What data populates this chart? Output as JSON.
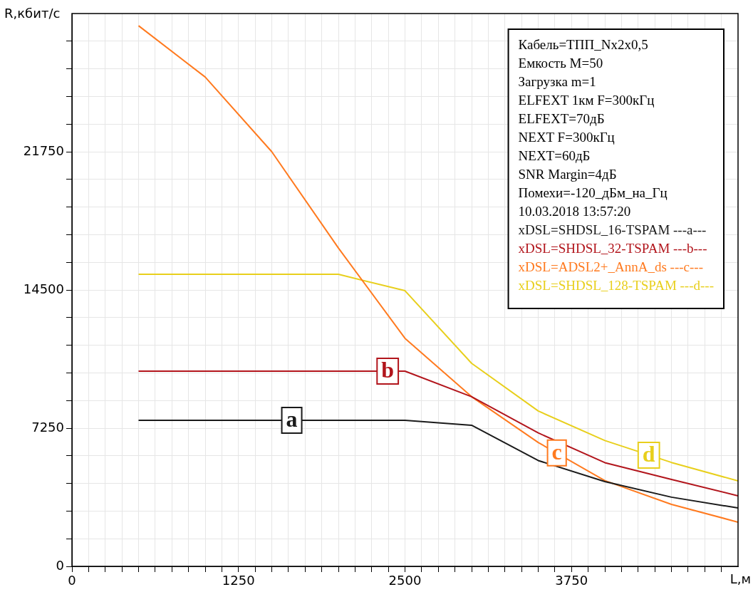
{
  "chart_data": {
    "type": "line",
    "xlabel": "L,м",
    "ylabel": "R,кбит/с",
    "x": [
      500,
      1000,
      1500,
      2000,
      2500,
      3000,
      3500,
      4000,
      4500,
      5000
    ],
    "series": [
      {
        "name": "xDSL=SHDSL_16-TSPAM ---a---",
        "color": "#1a1a1a",
        "values": [
          7660,
          7660,
          7660,
          7660,
          7660,
          7400,
          5550,
          4450,
          3630,
          3060
        ]
      },
      {
        "name": "xDSL=SHDSL_32-TSPAM ---b---",
        "color": "#b2151c",
        "values": [
          10240,
          10240,
          10240,
          10240,
          10240,
          8900,
          7000,
          5440,
          4560,
          3700
        ]
      },
      {
        "name": "xDSL=ADSL2+_AnnA_ds ---c---",
        "color": "#ff7a1f",
        "values": [
          28360,
          25670,
          21750,
          16700,
          11960,
          8900,
          6500,
          4500,
          3250,
          2320
        ]
      },
      {
        "name": "xDSL=SHDSL_128-TSPAM ---d---",
        "color": "#e8cf1c",
        "values": [
          15320,
          15320,
          15320,
          15320,
          14460,
          10650,
          8150,
          6600,
          5450,
          4480
        ]
      }
    ],
    "xlim": [
      0,
      5000
    ],
    "ylim": [
      0,
      29000
    ],
    "xticks": [
      0,
      {
        "value": 125,
        "label": null
      },
      {
        "value": 250,
        "label": null
      },
      {
        "value": 375,
        "label": null
      },
      {
        "value": 500,
        "label": null
      },
      {
        "value": 625,
        "label": null
      },
      {
        "value": 750,
        "label": null
      },
      {
        "value": 875,
        "label": null
      },
      {
        "value": 1000,
        "label": null
      },
      {
        "value": 1125,
        "label": null
      },
      1250,
      {
        "value": 1375,
        "label": null
      },
      {
        "value": 1500,
        "label": null
      },
      {
        "value": 1625,
        "label": null
      },
      {
        "value": 1750,
        "label": null
      },
      {
        "value": 1875,
        "label": null
      },
      {
        "value": 2000,
        "label": null
      },
      {
        "value": 2125,
        "label": null
      },
      {
        "value": 2250,
        "label": null
      },
      {
        "value": 2375,
        "label": null
      },
      2500,
      {
        "value": 2625,
        "label": null
      },
      {
        "value": 2750,
        "label": null
      },
      {
        "value": 2875,
        "label": null
      },
      {
        "value": 3000,
        "label": null
      },
      {
        "value": 3125,
        "label": null
      },
      {
        "value": 3250,
        "label": null
      },
      {
        "value": 3375,
        "label": null
      },
      {
        "value": 3500,
        "label": null
      },
      {
        "value": 3625,
        "label": null
      },
      3750,
      {
        "value": 3875,
        "label": null
      },
      {
        "value": 4000,
        "label": null
      },
      {
        "value": 4125,
        "label": null
      },
      {
        "value": 4250,
        "label": null
      },
      {
        "value": 4375,
        "label": null
      },
      {
        "value": 4500,
        "label": null
      },
      {
        "value": 4625,
        "label": null
      },
      {
        "value": 4750,
        "label": null
      },
      {
        "value": 4875,
        "label": null
      }
    ],
    "yticks": [
      0,
      {
        "value": 1450,
        "label": null
      },
      {
        "value": 2900,
        "label": null
      },
      {
        "value": 4350,
        "label": null
      },
      {
        "value": 5800,
        "label": null
      },
      7250,
      {
        "value": 8700,
        "label": null
      },
      {
        "value": 10150,
        "label": null
      },
      {
        "value": 11600,
        "label": null
      },
      {
        "value": 13050,
        "label": null
      },
      14500,
      {
        "value": 15950,
        "label": null
      },
      {
        "value": 17400,
        "label": null
      },
      {
        "value": 18850,
        "label": null
      },
      {
        "value": 20300,
        "label": null
      },
      21750,
      {
        "value": 23200,
        "label": null
      },
      {
        "value": 24650,
        "label": null
      },
      {
        "value": 26100,
        "label": null
      },
      {
        "value": 27550,
        "label": null
      }
    ],
    "grid": true,
    "legend": "top right",
    "marker": "none",
    "line_style": "solid",
    "annotations": [
      {
        "text": "a",
        "x": 1650,
        "y": 7660
      },
      {
        "text": "b",
        "x": 2370,
        "y": 10240
      },
      {
        "text": "c",
        "x": 3640,
        "y": 5950
      },
      {
        "text": "d",
        "x": 4330,
        "y": 5830
      },
      "Кабель=ТПП_Nx2x0,5",
      "Емкость M=50",
      "Загрузка m=1",
      "ELFEXT 1км F=300кГц",
      "ELFEXT=70дБ",
      "NEXT F=300кГц",
      "NEXT=60дБ",
      "SNR Margin=4дБ",
      "Помехи=-120_дБм_на_Гц",
      "10.03.2018 13:57:20"
    ]
  }
}
